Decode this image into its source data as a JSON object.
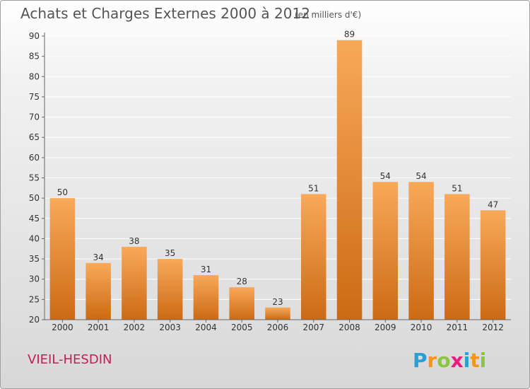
{
  "chart_data": {
    "type": "bar",
    "title": "Achats et Charges Externes 2000 à 2012",
    "subtitle": "(en milliers d'€)",
    "categories": [
      "2000",
      "2001",
      "2002",
      "2003",
      "2004",
      "2005",
      "2006",
      "2007",
      "2008",
      "2009",
      "2010",
      "2011",
      "2012"
    ],
    "values": [
      50,
      34,
      38,
      35,
      31,
      28,
      23,
      51,
      89,
      54,
      54,
      51,
      47
    ],
    "ylim": [
      20,
      90
    ],
    "yticks": [
      20,
      25,
      30,
      35,
      40,
      45,
      50,
      55,
      60,
      65,
      70,
      75,
      80,
      85,
      90
    ],
    "grid": true,
    "xlabel": "",
    "ylabel": ""
  },
  "commune": "VIEIL-HESDIN",
  "logo": {
    "text": "Proxiti",
    "letters": [
      "P",
      "r",
      "o",
      "x",
      "i",
      "t",
      "i"
    ],
    "letter_colors": [
      "#2a9fd6",
      "#f7941d",
      "#8cc63f",
      "#ec1c7c",
      "#2a9fd6",
      "#f7941d",
      "#8cc63f"
    ]
  },
  "colors": {
    "bar_top": "#f8a95a",
    "bar_bottom": "#cc6a14",
    "grid": "#ffffff",
    "axis": "#666666"
  }
}
